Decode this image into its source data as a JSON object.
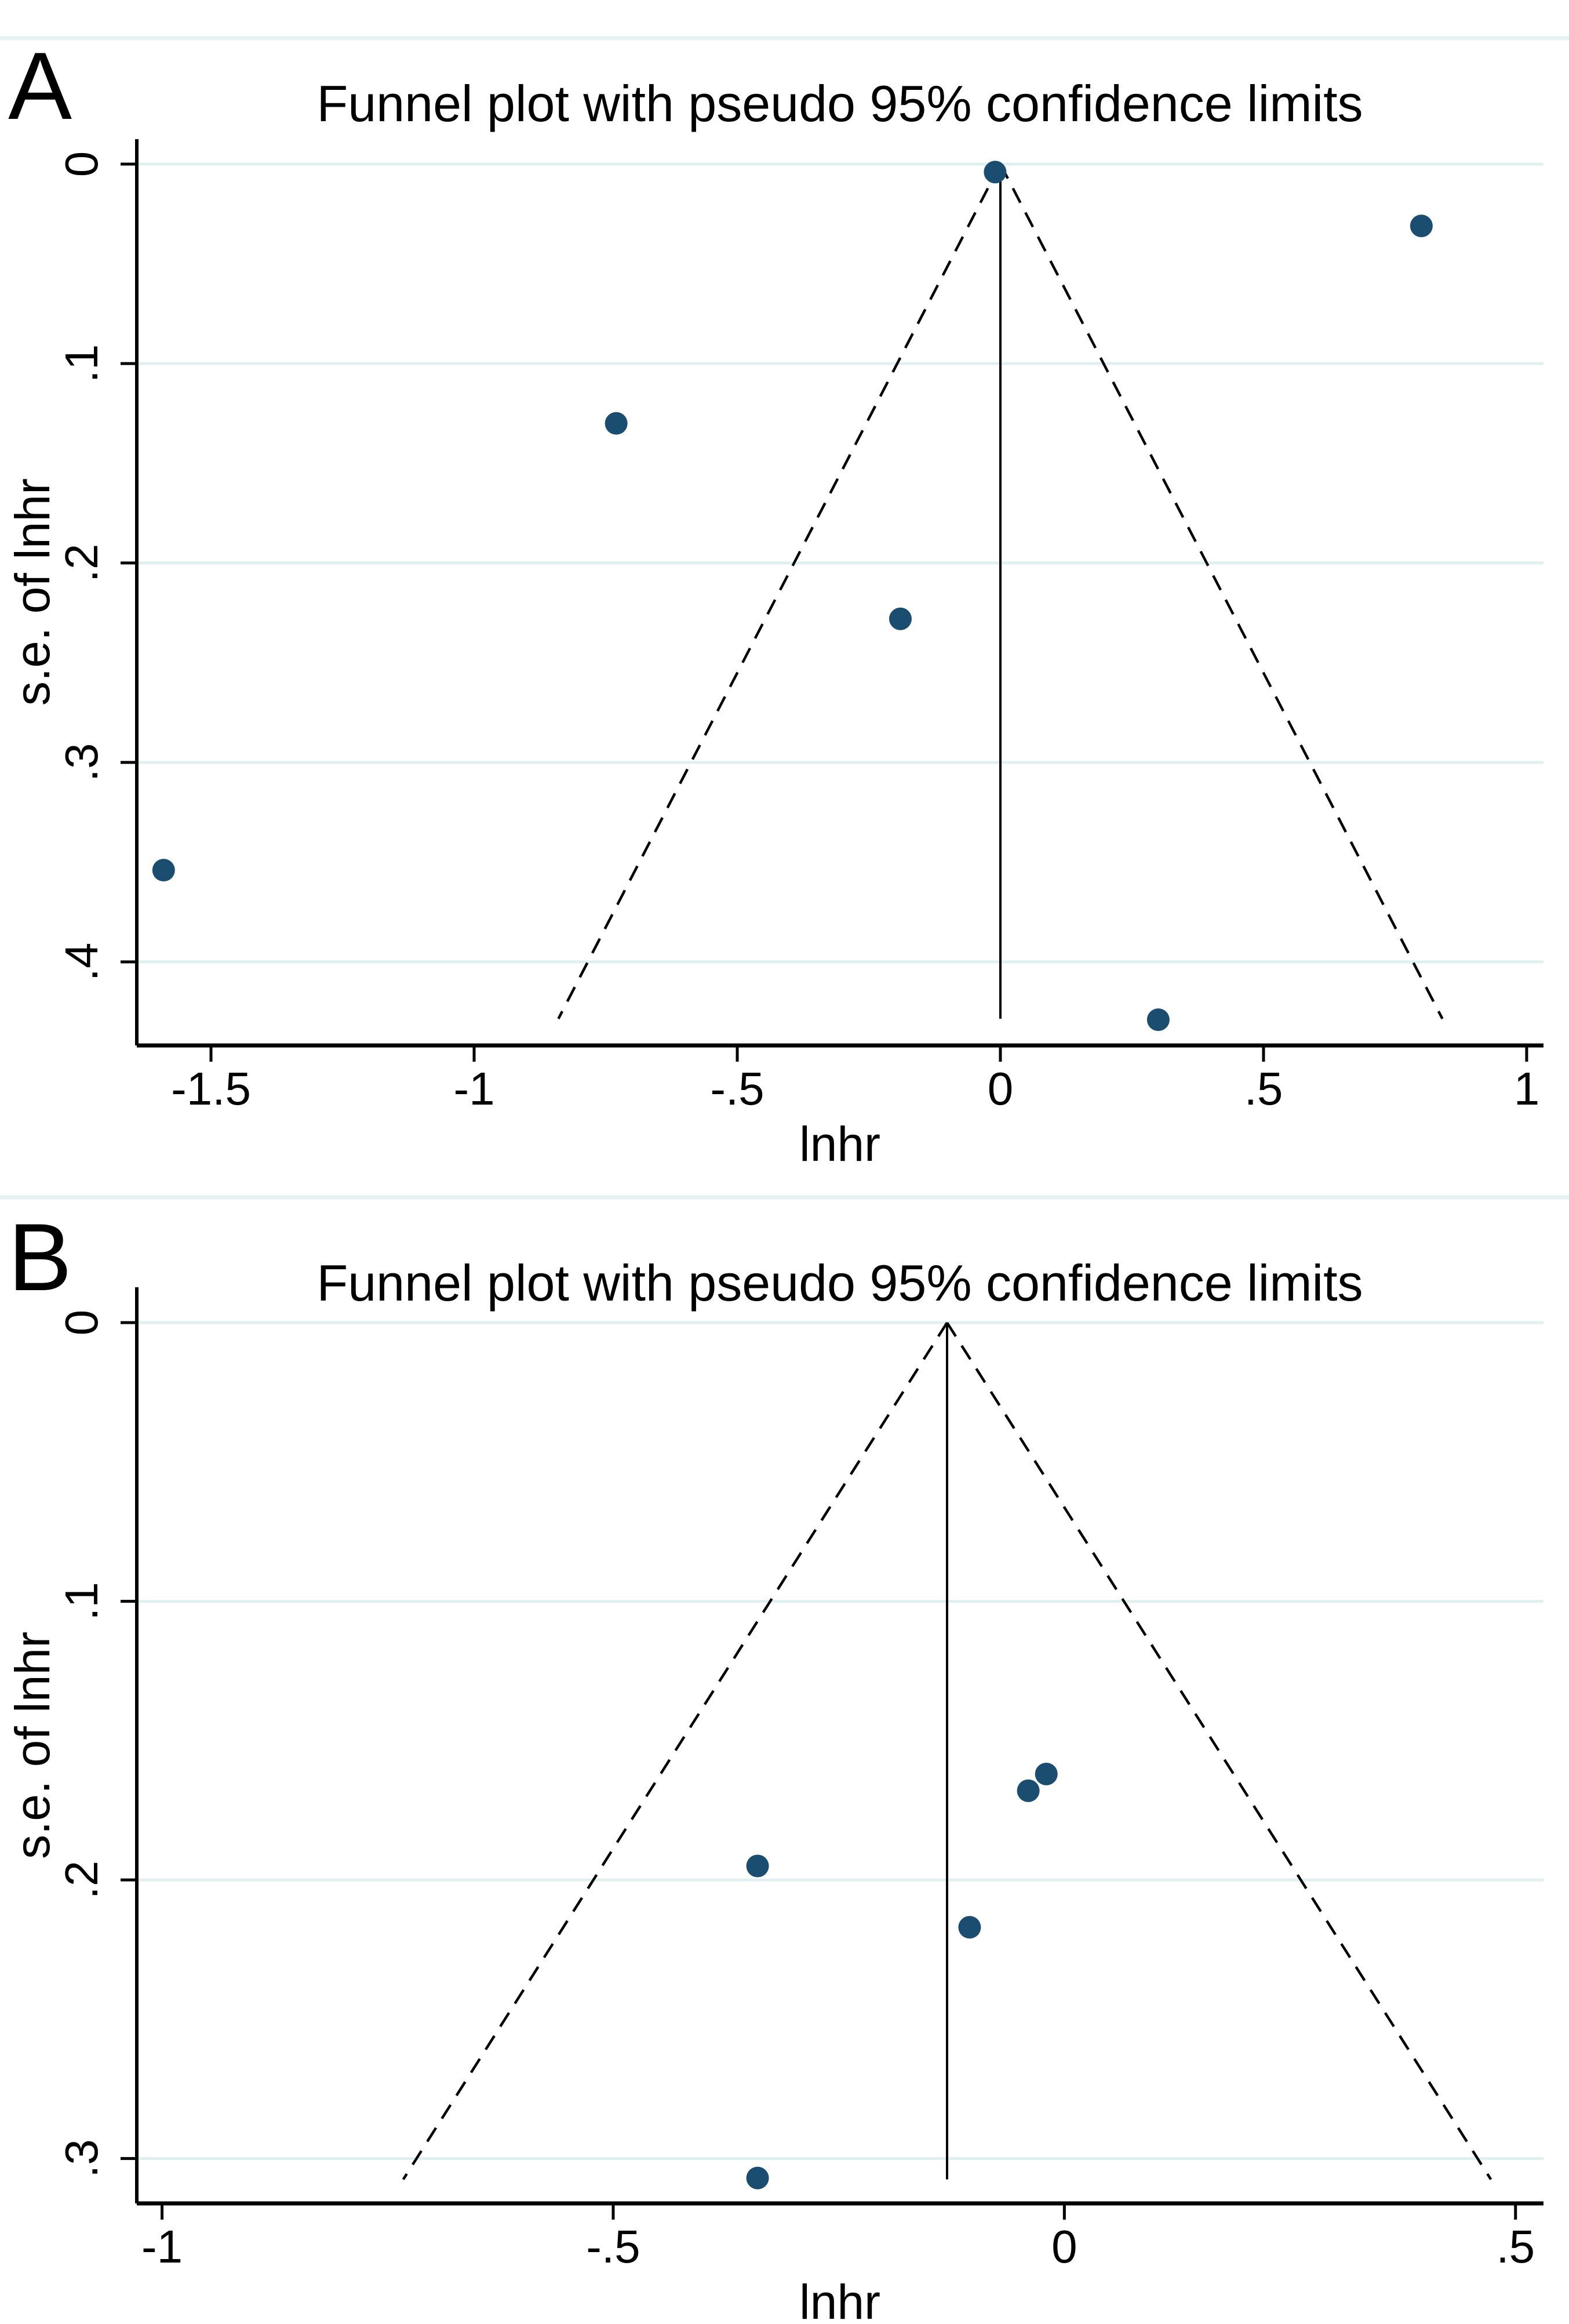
{
  "figure": {
    "background_color": "#ffffff",
    "separator_color": "#e7f3f3"
  },
  "chart_data": [
    {
      "type": "scatter",
      "subtype": "funnel-plot",
      "panel_label": "A",
      "title": "Funnel plot with pseudo 95% confidence limits",
      "xlabel": "lnhr",
      "ylabel": "s.e. of lnhr",
      "legend": "none",
      "grid": "horizontal",
      "xlim": [
        -1.641,
        1.032
      ],
      "ylim": [
        -0.0125,
        0.4419
      ],
      "y_axis_direction": "increases-downward",
      "x_ticks": [
        {
          "v": -1.5,
          "label": "-1.5"
        },
        {
          "v": -1.0,
          "label": "-1"
        },
        {
          "v": -0.5,
          "label": "-.5"
        },
        {
          "v": 0.0,
          "label": "0"
        },
        {
          "v": 0.5,
          "label": ".5"
        },
        {
          "v": 1.0,
          "label": "1"
        }
      ],
      "y_ticks": [
        {
          "v": 0.0,
          "label": "0"
        },
        {
          "v": 0.1,
          "label": ".1"
        },
        {
          "v": 0.2,
          "label": ".2"
        },
        {
          "v": 0.3,
          "label": ".3"
        },
        {
          "v": 0.4,
          "label": ".4"
        }
      ],
      "points": [
        {
          "x": -0.01,
          "se": 0.004
        },
        {
          "x": 0.8,
          "se": 0.031
        },
        {
          "x": -0.73,
          "se": 0.13
        },
        {
          "x": -0.19,
          "se": 0.228
        },
        {
          "x": -1.59,
          "se": 0.354
        },
        {
          "x": 0.3,
          "se": 0.429
        }
      ],
      "funnel": {
        "center_x": 0.0,
        "base_se": 0.4285,
        "ci_multiplier": 1.96
      },
      "point_color": "#1a4d70",
      "gridline_color": "#e2eff0",
      "line_color": "#000000"
    },
    {
      "type": "scatter",
      "subtype": "funnel-plot",
      "panel_label": "B",
      "title": "Funnel plot with pseudo 95% confidence limits",
      "xlabel": "lnhr",
      "ylabel": "s.e. of lnhr",
      "legend": "none",
      "grid": "horizontal",
      "xlim": [
        -1.028,
        0.531
      ],
      "ylim": [
        -0.0127,
        0.3161
      ],
      "y_axis_direction": "increases-downward",
      "x_ticks": [
        {
          "v": -1.0,
          "label": "-1"
        },
        {
          "v": -0.5,
          "label": "-.5"
        },
        {
          "v": 0.0,
          "label": "0"
        },
        {
          "v": 0.5,
          "label": ".5"
        }
      ],
      "y_ticks": [
        {
          "v": 0.0,
          "label": "0"
        },
        {
          "v": 0.1,
          "label": ".1"
        },
        {
          "v": 0.2,
          "label": ".2"
        },
        {
          "v": 0.3,
          "label": ".3"
        }
      ],
      "points": [
        {
          "x": -0.02,
          "se": 0.162
        },
        {
          "x": -0.04,
          "se": 0.168
        },
        {
          "x": -0.34,
          "se": 0.195
        },
        {
          "x": -0.105,
          "se": 0.217
        },
        {
          "x": -0.34,
          "se": 0.307
        }
      ],
      "funnel": {
        "center_x": -0.13,
        "base_se": 0.3075,
        "ci_multiplier": 1.96
      },
      "point_color": "#1a4d70",
      "gridline_color": "#e2eff0",
      "line_color": "#000000"
    }
  ]
}
